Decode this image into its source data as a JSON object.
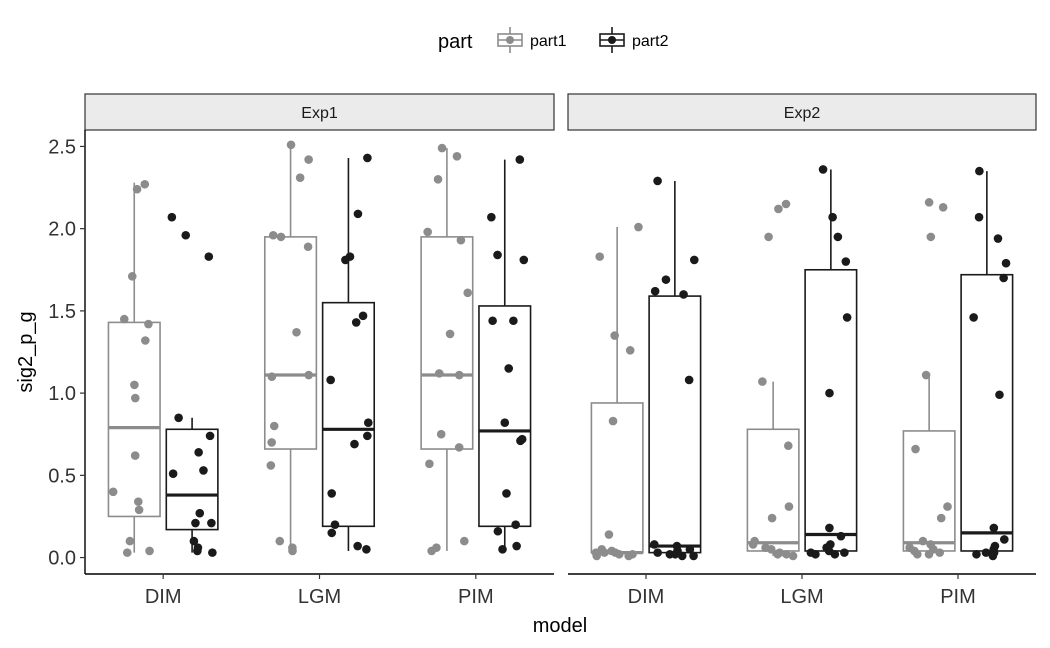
{
  "chart_data": {
    "type": "boxplot",
    "xlabel": "model",
    "ylabel": "sig2_p_g",
    "ylim": [
      -0.1,
      2.6
    ],
    "yticks": [
      0.0,
      0.5,
      1.0,
      1.5,
      2.0,
      2.5
    ],
    "ytick_labels": [
      "0.0",
      "0.5",
      "1.0",
      "1.5",
      "2.0",
      "2.5"
    ],
    "categories": [
      "DIM",
      "LGM",
      "PIM"
    ],
    "legend": {
      "title": "part",
      "position": "top",
      "entries": [
        {
          "name": "part1",
          "color": "#8c8c8c"
        },
        {
          "name": "part2",
          "color": "#1a1a1a"
        }
      ]
    },
    "facets": [
      {
        "label": "Exp1",
        "groups": [
          {
            "model": "DIM",
            "part": "part1",
            "stats": {
              "lower": 0.03,
              "q1": 0.25,
              "median": 0.79,
              "q3": 1.43,
              "upper": 2.28
            },
            "points": [
              2.27,
              2.24,
              1.71,
              1.45,
              1.42,
              1.32,
              1.05,
              0.97,
              0.62,
              0.4,
              0.34,
              0.29,
              0.1,
              0.04,
              0.03
            ]
          },
          {
            "model": "DIM",
            "part": "part2",
            "stats": {
              "lower": 0.03,
              "q1": 0.17,
              "median": 0.38,
              "q3": 0.78,
              "upper": 0.85
            },
            "points": [
              2.07,
              1.96,
              1.83,
              0.85,
              0.74,
              0.64,
              0.53,
              0.51,
              0.27,
              0.21,
              0.21,
              0.1,
              0.06,
              0.04,
              0.03
            ]
          },
          {
            "model": "LGM",
            "part": "part1",
            "stats": {
              "lower": 0.04,
              "q1": 0.66,
              "median": 1.11,
              "q3": 1.95,
              "upper": 2.51
            },
            "points": [
              2.51,
              2.42,
              2.31,
              1.96,
              1.95,
              1.89,
              1.37,
              1.11,
              1.1,
              0.8,
              0.7,
              0.56,
              0.1,
              0.06,
              0.04
            ]
          },
          {
            "model": "LGM",
            "part": "part2",
            "stats": {
              "lower": 0.04,
              "q1": 0.19,
              "median": 0.78,
              "q3": 1.55,
              "upper": 2.43
            },
            "points": [
              2.43,
              2.09,
              1.83,
              1.81,
              1.47,
              1.43,
              1.08,
              0.82,
              0.74,
              0.69,
              0.39,
              0.2,
              0.15,
              0.07,
              0.05
            ]
          },
          {
            "model": "PIM",
            "part": "part1",
            "stats": {
              "lower": 0.04,
              "q1": 0.66,
              "median": 1.11,
              "q3": 1.95,
              "upper": 2.49
            },
            "points": [
              2.49,
              2.44,
              2.3,
              1.98,
              1.93,
              1.61,
              1.36,
              1.12,
              1.11,
              0.75,
              0.67,
              0.57,
              0.1,
              0.06,
              0.04
            ]
          },
          {
            "model": "PIM",
            "part": "part2",
            "stats": {
              "lower": 0.04,
              "q1": 0.19,
              "median": 0.77,
              "q3": 1.53,
              "upper": 2.42
            },
            "points": [
              2.42,
              2.07,
              1.84,
              1.81,
              1.44,
              1.44,
              1.15,
              0.82,
              0.72,
              0.71,
              0.39,
              0.2,
              0.16,
              0.07,
              0.05
            ]
          }
        ]
      },
      {
        "label": "Exp2",
        "groups": [
          {
            "model": "DIM",
            "part": "part1",
            "stats": {
              "lower": 0.01,
              "q1": 0.03,
              "median": 0.03,
              "q3": 0.94,
              "upper": 2.01
            },
            "points": [
              2.01,
              1.83,
              1.35,
              1.26,
              0.83,
              0.14,
              0.05,
              0.04,
              0.03,
              0.03,
              0.03,
              0.02,
              0.02,
              0.01,
              0.01
            ]
          },
          {
            "model": "DIM",
            "part": "part2",
            "stats": {
              "lower": 0.01,
              "q1": 0.03,
              "median": 0.07,
              "q3": 1.59,
              "upper": 2.29
            },
            "points": [
              2.29,
              1.81,
              1.69,
              1.62,
              1.6,
              1.08,
              0.08,
              0.07,
              0.05,
              0.04,
              0.03,
              0.02,
              0.02,
              0.01,
              0.01
            ]
          },
          {
            "model": "LGM",
            "part": "part1",
            "stats": {
              "lower": 0.01,
              "q1": 0.04,
              "median": 0.09,
              "q3": 0.78,
              "upper": 1.07
            },
            "points": [
              2.15,
              2.12,
              1.95,
              1.07,
              0.68,
              0.31,
              0.24,
              0.1,
              0.08,
              0.06,
              0.05,
              0.03,
              0.02,
              0.02,
              0.01
            ]
          },
          {
            "model": "LGM",
            "part": "part2",
            "stats": {
              "lower": 0.02,
              "q1": 0.04,
              "median": 0.14,
              "q3": 1.75,
              "upper": 2.36
            },
            "points": [
              2.36,
              2.07,
              1.95,
              1.8,
              1.46,
              1.0,
              0.18,
              0.13,
              0.08,
              0.06,
              0.04,
              0.03,
              0.03,
              0.02,
              0.02
            ]
          },
          {
            "model": "PIM",
            "part": "part1",
            "stats": {
              "lower": 0.02,
              "q1": 0.04,
              "median": 0.09,
              "q3": 0.77,
              "upper": 1.1
            },
            "points": [
              2.16,
              2.13,
              1.95,
              1.11,
              0.66,
              0.31,
              0.24,
              0.1,
              0.08,
              0.06,
              0.05,
              0.04,
              0.03,
              0.02,
              0.02
            ]
          },
          {
            "model": "PIM",
            "part": "part2",
            "stats": {
              "lower": 0.02,
              "q1": 0.04,
              "median": 0.15,
              "q3": 1.72,
              "upper": 2.35
            },
            "points": [
              2.35,
              2.07,
              1.94,
              1.79,
              1.7,
              1.46,
              0.99,
              0.18,
              0.11,
              0.07,
              0.05,
              0.03,
              0.03,
              0.02,
              0.01
            ]
          }
        ]
      }
    ]
  }
}
